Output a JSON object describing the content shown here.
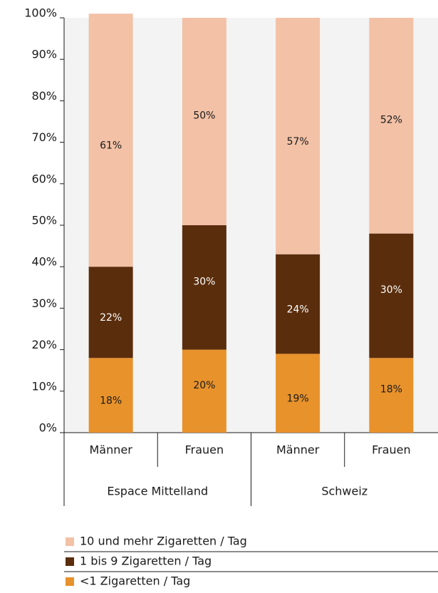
{
  "chart_data": {
    "type": "stacked_bar",
    "categories": [
      "Männer",
      "Frauen",
      "Männer",
      "Frauen"
    ],
    "groups": [
      "Espace Mittelland",
      "Schweiz"
    ],
    "series": [
      {
        "name": "<1 Zigaretten / Tag",
        "color": "#e8922b",
        "values": [
          18,
          20,
          19,
          18
        ],
        "value_labels": [
          "18%",
          "20%",
          "19%",
          "18%"
        ]
      },
      {
        "name": "1 bis 9 Zigaretten / Tag",
        "color": "#5a2d0c",
        "values": [
          22,
          30,
          24,
          30
        ],
        "value_labels": [
          "22%",
          "30%",
          "24%",
          "30%"
        ]
      },
      {
        "name": "10 und mehr Zigaretten / Tag",
        "color": "#f2c1a6",
        "values": [
          61,
          50,
          57,
          52
        ],
        "value_labels": [
          "61%",
          "50%",
          "57%",
          "52%"
        ]
      }
    ],
    "ylim": [
      0,
      100
    ],
    "yticks": [
      {
        "value": 0,
        "label": "0%"
      },
      {
        "value": 10,
        "label": "10%"
      },
      {
        "value": 20,
        "label": "20%"
      },
      {
        "value": 30,
        "label": "30%"
      },
      {
        "value": 40,
        "label": "40%"
      },
      {
        "value": 50,
        "label": "50%"
      },
      {
        "value": 60,
        "label": "60%"
      },
      {
        "value": 70,
        "label": "70%"
      },
      {
        "value": 80,
        "label": "80%"
      },
      {
        "value": 90,
        "label": "90%"
      },
      {
        "value": 100,
        "label": "100%"
      }
    ]
  }
}
